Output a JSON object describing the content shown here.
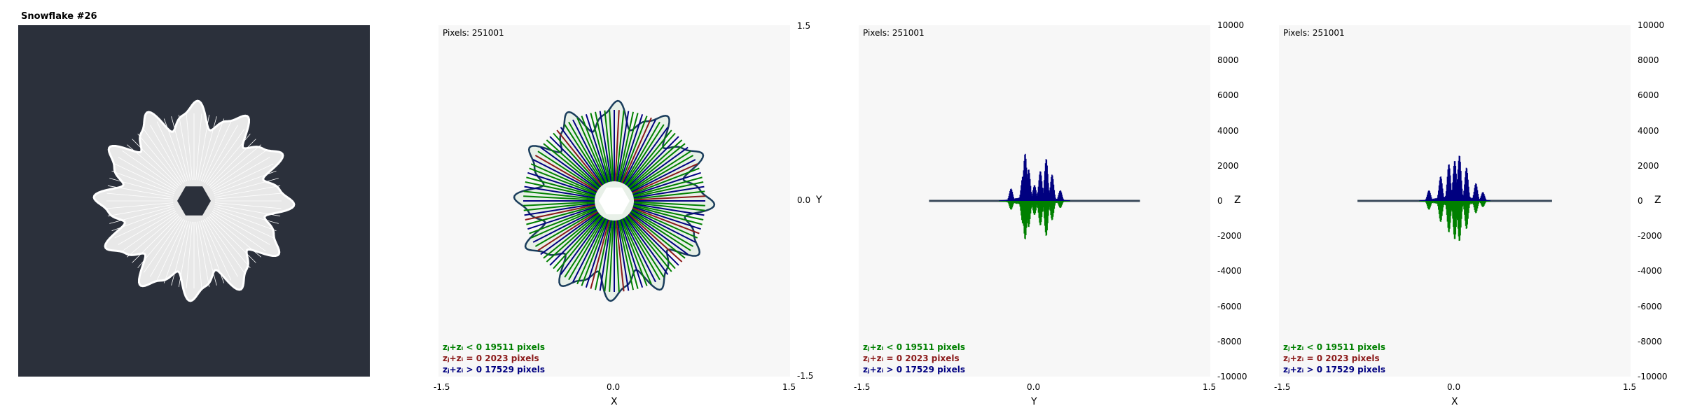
{
  "title": "Snowflake #26",
  "image_panel": {
    "background": "#2b303b",
    "foreground": "#e8e8e8"
  },
  "colors": {
    "negative": "#008000",
    "zero": "#8b1a1a",
    "positive": "#000080",
    "plot_bg": "#f7f7f7"
  },
  "legend": {
    "neg": "zⱼ+zᵢ < 0  19511 pixels",
    "zero": "zⱼ+zᵢ = 0  2023 pixels",
    "pos": "zⱼ+zᵢ > 0  17529 pixels"
  },
  "pixels_label": "Pixels: 251001",
  "chart_data": [
    {
      "type": "scatter",
      "xlabel": "X",
      "ylabel": "Y",
      "xlim": [
        -1.5,
        1.5
      ],
      "ylim": [
        -1.5,
        1.5
      ],
      "xticks": [
        "-1.5",
        "0.0",
        "1.5"
      ],
      "yticks": [
        "1.5",
        "0.0",
        "-1.5"
      ]
    },
    {
      "type": "bar",
      "xlabel": "Y",
      "ylabel": "Z",
      "xlim": [
        -1.5,
        1.5
      ],
      "ylim": [
        -10000,
        10000
      ],
      "xticks": [
        "-1.5",
        "0.0",
        "1.5"
      ],
      "yticks": [
        "10000",
        "8000",
        "6000",
        "4000",
        "2000",
        "0",
        "-2000",
        "-4000",
        "-6000",
        "-8000",
        "-10000"
      ],
      "x_extent": [
        -0.9,
        0.9
      ],
      "peaks": [
        {
          "y": -0.2,
          "pos": 700,
          "neg": -500
        },
        {
          "y": -0.1,
          "pos": 1400,
          "neg": -1300
        },
        {
          "y": -0.08,
          "pos": 2700,
          "neg": -2200
        },
        {
          "y": -0.05,
          "pos": 1800,
          "neg": -1500
        },
        {
          "y": 0.0,
          "pos": 900,
          "neg": -800
        },
        {
          "y": 0.05,
          "pos": 1700,
          "neg": -1400
        },
        {
          "y": 0.1,
          "pos": 2400,
          "neg": -2000
        },
        {
          "y": 0.15,
          "pos": 1500,
          "neg": -1100
        },
        {
          "y": 0.22,
          "pos": 600,
          "neg": -400
        }
      ]
    },
    {
      "type": "bar",
      "xlabel": "X",
      "ylabel": "Z",
      "xlim": [
        -1.5,
        1.5
      ],
      "ylim": [
        -10000,
        10000
      ],
      "xticks": [
        "-1.5",
        "0.0",
        "1.5"
      ],
      "yticks": [
        "10000",
        "8000",
        "6000",
        "4000",
        "2000",
        "0",
        "-2000",
        "-4000",
        "-6000",
        "-8000",
        "-10000"
      ],
      "x_extent": [
        -0.83,
        0.83
      ],
      "peaks": [
        {
          "y": -0.22,
          "pos": 600,
          "neg": -500
        },
        {
          "y": -0.12,
          "pos": 1400,
          "neg": -1200
        },
        {
          "y": -0.05,
          "pos": 2100,
          "neg": -1800
        },
        {
          "y": 0.0,
          "pos": 2300,
          "neg": -2200
        },
        {
          "y": 0.04,
          "pos": 2600,
          "neg": -2300
        },
        {
          "y": 0.1,
          "pos": 1900,
          "neg": -1600
        },
        {
          "y": 0.18,
          "pos": 1000,
          "neg": -700
        },
        {
          "y": 0.24,
          "pos": 500,
          "neg": -350
        }
      ]
    }
  ]
}
